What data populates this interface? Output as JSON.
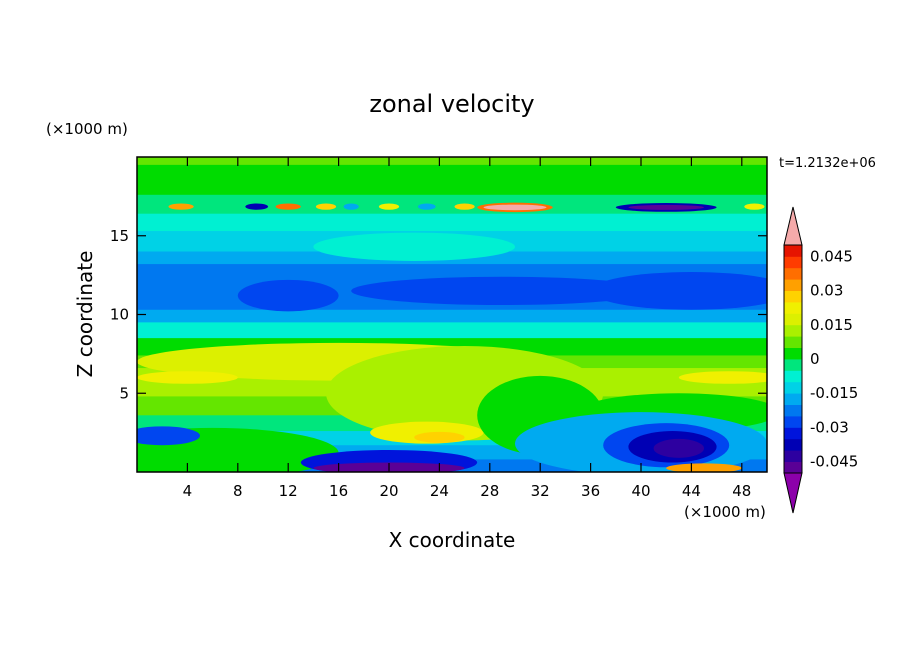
{
  "chart_data": {
    "type": "heatmap",
    "title": "zonal velocity",
    "xlabel": "X coordinate",
    "ylabel": "Z coordinate",
    "x_unit": "(×1000 m)",
    "y_unit": "(×1000 m)",
    "time_label": "t=1.2132e+06",
    "xlim": [
      0,
      50
    ],
    "ylim": [
      0,
      20
    ],
    "x_ticks": [
      4,
      8,
      12,
      16,
      20,
      24,
      28,
      32,
      36,
      40,
      44,
      48
    ],
    "y_ticks": [
      5,
      10,
      15
    ],
    "x_ticks_labels": [
      "4",
      "8",
      "12",
      "16",
      "20",
      "24",
      "28",
      "32",
      "36",
      "40",
      "44",
      "48"
    ],
    "y_ticks_labels": [
      "5",
      "10",
      "15"
    ],
    "colorbar": {
      "levels": [
        -0.05,
        -0.045,
        -0.04,
        -0.035,
        -0.03,
        -0.025,
        -0.02,
        -0.015,
        -0.01,
        -0.005,
        0,
        0.005,
        0.01,
        0.015,
        0.02,
        0.025,
        0.03,
        0.035,
        0.04,
        0.045,
        0.05
      ],
      "colors": [
        "#5a0096",
        "#2d00a0",
        "#0000b4",
        "#0014dc",
        "#0046f0",
        "#0078f0",
        "#00aaf0",
        "#00d2e6",
        "#00f0d2",
        "#00e67d",
        "#00dc00",
        "#64e600",
        "#aaf000",
        "#dcf000",
        "#f0f000",
        "#ffd200",
        "#ffa000",
        "#ff6e00",
        "#ff3c00",
        "#e61400"
      ],
      "under_color": "#8c00aa",
      "over_color": "#f5aaaa",
      "labels": [
        "0.045",
        "0.03",
        "0.015",
        "0",
        "-0.015",
        "-0.03",
        "-0.045"
      ],
      "label_values": [
        0.045,
        0.03,
        0.015,
        0,
        -0.015,
        -0.03,
        -0.045
      ]
    },
    "bands": [
      {
        "z": [
          19.5,
          20
        ],
        "u": 0.008
      },
      {
        "z": [
          18.5,
          19.5
        ],
        "u": 0.002
      },
      {
        "z": [
          17.6,
          18.5
        ],
        "u": 0.004
      },
      {
        "z": [
          16.4,
          17.6
        ],
        "u": -0.002
      },
      {
        "z": [
          15.3,
          16.4
        ],
        "u": -0.006
      },
      {
        "z": [
          14.0,
          15.3
        ],
        "u": -0.013
      },
      {
        "z": [
          13.2,
          14.0
        ],
        "u": -0.017
      },
      {
        "z": [
          10.3,
          13.2
        ],
        "u": -0.024
      },
      {
        "z": [
          9.5,
          10.3
        ],
        "u": -0.016
      },
      {
        "z": [
          8.5,
          9.5
        ],
        "u": -0.008
      },
      {
        "z": [
          7.4,
          8.5
        ],
        "u": 0.002
      },
      {
        "z": [
          6.6,
          7.4
        ],
        "u": 0.008
      },
      {
        "z": [
          4.8,
          6.6
        ],
        "u": 0.014
      },
      {
        "z": [
          3.6,
          4.8
        ],
        "u": 0.008
      },
      {
        "z": [
          2.6,
          3.6
        ],
        "u": -0.004
      },
      {
        "z": [
          1.7,
          2.6
        ],
        "u": -0.012
      },
      {
        "z": [
          0.8,
          1.7
        ],
        "u": -0.017
      },
      {
        "z": [
          0,
          0.8
        ],
        "u": -0.022
      }
    ],
    "features": [
      {
        "x": 16,
        "z": 7.0,
        "rx": 16,
        "rz": 1.2,
        "u": 0.016
      },
      {
        "x": 4,
        "z": 6.0,
        "rx": 4,
        "rz": 0.4,
        "u": 0.021
      },
      {
        "x": 47,
        "z": 6.0,
        "rx": 4,
        "rz": 0.4,
        "u": 0.021
      },
      {
        "x": 26,
        "z": 5.0,
        "rx": 11,
        "rz": 3.0,
        "u": 0.014
      },
      {
        "x": 23,
        "z": 2.5,
        "rx": 4.5,
        "rz": 0.7,
        "u": 0.022
      },
      {
        "x": 24,
        "z": 2.2,
        "rx": 2,
        "rz": 0.35,
        "u": 0.026
      },
      {
        "x": 6,
        "z": 1.2,
        "rx": 10,
        "rz": 1.6,
        "u": 0.004
      },
      {
        "x": 2,
        "z": 2.3,
        "rx": 3,
        "rz": 0.6,
        "u": -0.027
      },
      {
        "x": 32,
        "z": 3.6,
        "rx": 5,
        "rz": 2.5,
        "u": 0.002
      },
      {
        "x": 43,
        "z": 3.8,
        "rx": 8,
        "rz": 1.2,
        "u": 0.004
      },
      {
        "x": 40,
        "z": 1.8,
        "rx": 10,
        "rz": 2.0,
        "u": -0.018
      },
      {
        "x": 42,
        "z": 1.7,
        "rx": 5,
        "rz": 1.4,
        "u": -0.028
      },
      {
        "x": 42.5,
        "z": 1.6,
        "rx": 3.5,
        "rz": 1.0,
        "u": -0.036
      },
      {
        "x": 43,
        "z": 1.5,
        "rx": 2,
        "rz": 0.6,
        "u": -0.043
      },
      {
        "x": 20,
        "z": 0.6,
        "rx": 7,
        "rz": 0.8,
        "u": -0.032
      },
      {
        "x": 20,
        "z": 0.25,
        "rx": 6,
        "rz": 0.35,
        "u": -0.048
      },
      {
        "x": 45,
        "z": 0.25,
        "rx": 3,
        "rz": 0.3,
        "u": 0.032
      },
      {
        "x": 29,
        "z": 11.5,
        "rx": 12,
        "rz": 0.9,
        "u": -0.028
      },
      {
        "x": 12,
        "z": 11.2,
        "rx": 4,
        "rz": 1.0,
        "u": -0.027
      },
      {
        "x": 44,
        "z": 11.5,
        "rx": 8,
        "rz": 1.2,
        "u": -0.027
      },
      {
        "x": 22,
        "z": 14.3,
        "rx": 8,
        "rz": 0.9,
        "u": -0.009
      },
      {
        "x": 30,
        "z": 16.8,
        "rx": 3,
        "rz": 0.3,
        "u": 0.038
      },
      {
        "x": 30,
        "z": 16.8,
        "rx": 2.5,
        "rz": 0.18,
        "u": 0.055
      },
      {
        "x": 42,
        "z": 16.8,
        "rx": 4,
        "rz": 0.28,
        "u": -0.038
      },
      {
        "x": 42,
        "z": 16.8,
        "rx": 3,
        "rz": 0.16,
        "u": -0.048
      },
      {
        "x": 3.5,
        "z": 16.85,
        "rx": 1.0,
        "rz": 0.2,
        "u": 0.03
      },
      {
        "x": 9.5,
        "z": 16.85,
        "rx": 0.9,
        "rz": 0.2,
        "u": -0.04
      },
      {
        "x": 12,
        "z": 16.85,
        "rx": 1.0,
        "rz": 0.2,
        "u": 0.035
      },
      {
        "x": 15,
        "z": 16.85,
        "rx": 0.8,
        "rz": 0.2,
        "u": 0.028
      },
      {
        "x": 17,
        "z": 16.85,
        "rx": 0.6,
        "rz": 0.2,
        "u": -0.02
      },
      {
        "x": 20,
        "z": 16.85,
        "rx": 0.8,
        "rz": 0.2,
        "u": 0.024
      },
      {
        "x": 23,
        "z": 16.85,
        "rx": 0.7,
        "rz": 0.2,
        "u": -0.018
      },
      {
        "x": 26,
        "z": 16.85,
        "rx": 0.8,
        "rz": 0.2,
        "u": 0.026
      },
      {
        "x": 49,
        "z": 16.85,
        "rx": 0.8,
        "rz": 0.2,
        "u": 0.02
      }
    ]
  }
}
